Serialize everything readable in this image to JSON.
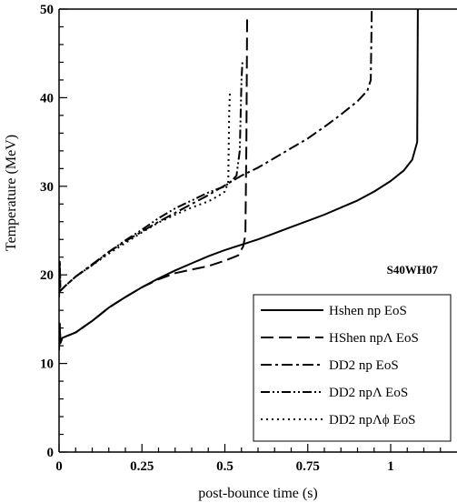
{
  "chart_data": {
    "type": "line",
    "title": "",
    "xlabel": "post-bounce time (s)",
    "ylabel": "Temperature (MeV)",
    "xlim": [
      0,
      1.2
    ],
    "ylim": [
      0,
      50
    ],
    "xticks": [
      {
        "value": 0,
        "label": "0"
      },
      {
        "value": 0.25,
        "label": "0.25"
      },
      {
        "value": 0.5,
        "label": "0.5"
      },
      {
        "value": 0.75,
        "label": "0.75"
      },
      {
        "value": 1,
        "label": "1"
      }
    ],
    "yticks": [
      {
        "value": 0,
        "label": "0"
      },
      {
        "value": 10,
        "label": "10"
      },
      {
        "value": 20,
        "label": "20"
      },
      {
        "value": 30,
        "label": "30"
      },
      {
        "value": 40,
        "label": "40"
      },
      {
        "value": 50,
        "label": "50"
      }
    ],
    "grid": false,
    "legend_position": "bottom-right",
    "annotation": "S40WH07",
    "series": [
      {
        "name": "Hshen np EoS",
        "dash": "solid",
        "points": [
          [
            0,
            11.5
          ],
          [
            0.002,
            14.5
          ],
          [
            0.004,
            12.3
          ],
          [
            0.01,
            12.9
          ],
          [
            0.05,
            13.5
          ],
          [
            0.1,
            14.8
          ],
          [
            0.15,
            16.3
          ],
          [
            0.2,
            17.5
          ],
          [
            0.25,
            18.6
          ],
          [
            0.3,
            19.6
          ],
          [
            0.35,
            20.5
          ],
          [
            0.4,
            21.3
          ],
          [
            0.45,
            22.1
          ],
          [
            0.5,
            22.8
          ],
          [
            0.55,
            23.4
          ],
          [
            0.6,
            24.0
          ],
          [
            0.65,
            24.7
          ],
          [
            0.7,
            25.4
          ],
          [
            0.75,
            26.1
          ],
          [
            0.8,
            26.8
          ],
          [
            0.85,
            27.6
          ],
          [
            0.9,
            28.4
          ],
          [
            0.95,
            29.4
          ],
          [
            1.0,
            30.6
          ],
          [
            1.04,
            31.8
          ],
          [
            1.065,
            33.0
          ],
          [
            1.08,
            35.0
          ],
          [
            1.082,
            50
          ]
        ]
      },
      {
        "name": "HShen npΛ EoS",
        "dash": "dash",
        "points": [
          [
            0,
            11.5
          ],
          [
            0.002,
            14.5
          ],
          [
            0.004,
            12.3
          ],
          [
            0.01,
            12.9
          ],
          [
            0.05,
            13.5
          ],
          [
            0.1,
            14.8
          ],
          [
            0.15,
            16.3
          ],
          [
            0.2,
            17.5
          ],
          [
            0.25,
            18.6
          ],
          [
            0.3,
            19.5
          ],
          [
            0.35,
            20.2
          ],
          [
            0.4,
            20.6
          ],
          [
            0.45,
            21.0
          ],
          [
            0.5,
            21.6
          ],
          [
            0.54,
            22.2
          ],
          [
            0.555,
            23.2
          ],
          [
            0.562,
            24.5
          ],
          [
            0.565,
            35.0
          ],
          [
            0.567,
            49
          ]
        ]
      },
      {
        "name": "DD2 np EoS",
        "dash": "dashdot",
        "points": [
          [
            0,
            17.5
          ],
          [
            0.002,
            21.5
          ],
          [
            0.004,
            18.2
          ],
          [
            0.02,
            18.8
          ],
          [
            0.05,
            19.8
          ],
          [
            0.1,
            21.2
          ],
          [
            0.15,
            22.6
          ],
          [
            0.2,
            23.8
          ],
          [
            0.25,
            24.9
          ],
          [
            0.3,
            26.0
          ],
          [
            0.35,
            27.0
          ],
          [
            0.4,
            28.0
          ],
          [
            0.45,
            29.0
          ],
          [
            0.5,
            30.1
          ],
          [
            0.55,
            31.2
          ],
          [
            0.6,
            32.1
          ],
          [
            0.65,
            33.2
          ],
          [
            0.7,
            34.3
          ],
          [
            0.75,
            35.4
          ],
          [
            0.8,
            36.7
          ],
          [
            0.85,
            38.1
          ],
          [
            0.9,
            39.6
          ],
          [
            0.93,
            40.8
          ],
          [
            0.94,
            42.0
          ],
          [
            0.943,
            50
          ]
        ]
      },
      {
        "name": "DD2 npΛ EoS",
        "dash": "dashdotdot",
        "points": [
          [
            0,
            17.5
          ],
          [
            0.002,
            21.5
          ],
          [
            0.004,
            18.2
          ],
          [
            0.02,
            18.8
          ],
          [
            0.05,
            19.8
          ],
          [
            0.1,
            21.1
          ],
          [
            0.15,
            22.6
          ],
          [
            0.2,
            23.9
          ],
          [
            0.25,
            25.1
          ],
          [
            0.3,
            26.4
          ],
          [
            0.35,
            27.5
          ],
          [
            0.4,
            28.4
          ],
          [
            0.45,
            29.3
          ],
          [
            0.5,
            30.0
          ],
          [
            0.52,
            30.6
          ],
          [
            0.535,
            31.2
          ],
          [
            0.545,
            34.0
          ],
          [
            0.55,
            42.0
          ],
          [
            0.553,
            44.0
          ]
        ]
      },
      {
        "name": "DD2 npΛϕ EoS",
        "dash": "dot",
        "points": [
          [
            0,
            17.5
          ],
          [
            0.002,
            21.5
          ],
          [
            0.004,
            18.2
          ],
          [
            0.02,
            18.8
          ],
          [
            0.05,
            19.8
          ],
          [
            0.1,
            21.1
          ],
          [
            0.15,
            22.4
          ],
          [
            0.2,
            23.6
          ],
          [
            0.25,
            24.8
          ],
          [
            0.3,
            25.9
          ],
          [
            0.35,
            26.8
          ],
          [
            0.4,
            27.6
          ],
          [
            0.45,
            28.3
          ],
          [
            0.48,
            28.9
          ],
          [
            0.5,
            29.4
          ],
          [
            0.51,
            30.5
          ],
          [
            0.513,
            38.0
          ],
          [
            0.515,
            40.5
          ]
        ]
      }
    ]
  }
}
